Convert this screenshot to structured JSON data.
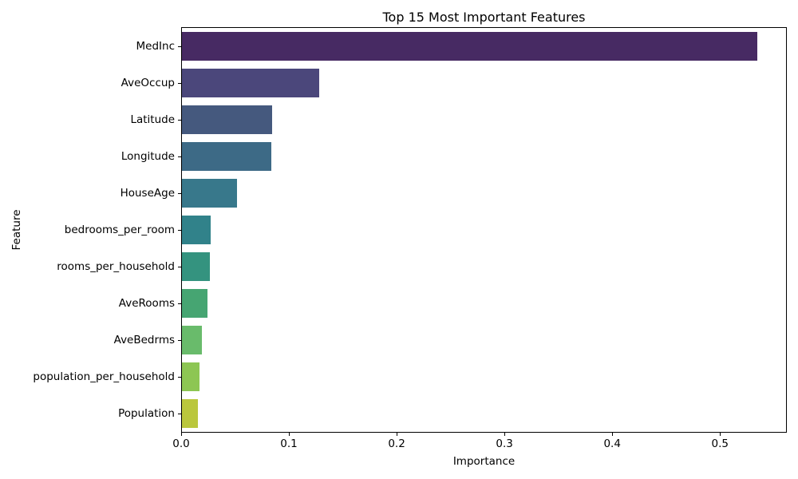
{
  "chart_data": {
    "type": "bar",
    "orientation": "horizontal",
    "title": "Top 15 Most Important Features",
    "xlabel": "Importance",
    "ylabel": "Feature",
    "categories": [
      "MedInc",
      "AveOccup",
      "Latitude",
      "Longitude",
      "HouseAge",
      "bedrooms_per_room",
      "rooms_per_household",
      "AveRooms",
      "AveBedrms",
      "population_per_household",
      "Population"
    ],
    "values": [
      0.535,
      0.128,
      0.084,
      0.083,
      0.0515,
      0.0265,
      0.0258,
      0.0241,
      0.0189,
      0.0164,
      0.015
    ],
    "bar_colors": [
      "#472a63",
      "#4b477b",
      "#45597e",
      "#3d6a86",
      "#38788b",
      "#31828a",
      "#34937f",
      "#46a572",
      "#69bb6b",
      "#8dc653",
      "#bac73d"
    ],
    "xlim": [
      0,
      0.562
    ],
    "xticks": [
      0.0,
      0.1,
      0.2,
      0.3,
      0.4,
      0.5
    ],
    "xtick_labels": [
      "0.0",
      "0.1",
      "0.2",
      "0.3",
      "0.4",
      "0.5"
    ],
    "grid": false,
    "legend_position": "none",
    "background_color": "#ffffff",
    "spine_color": "#000000",
    "text_color": "#000000"
  }
}
